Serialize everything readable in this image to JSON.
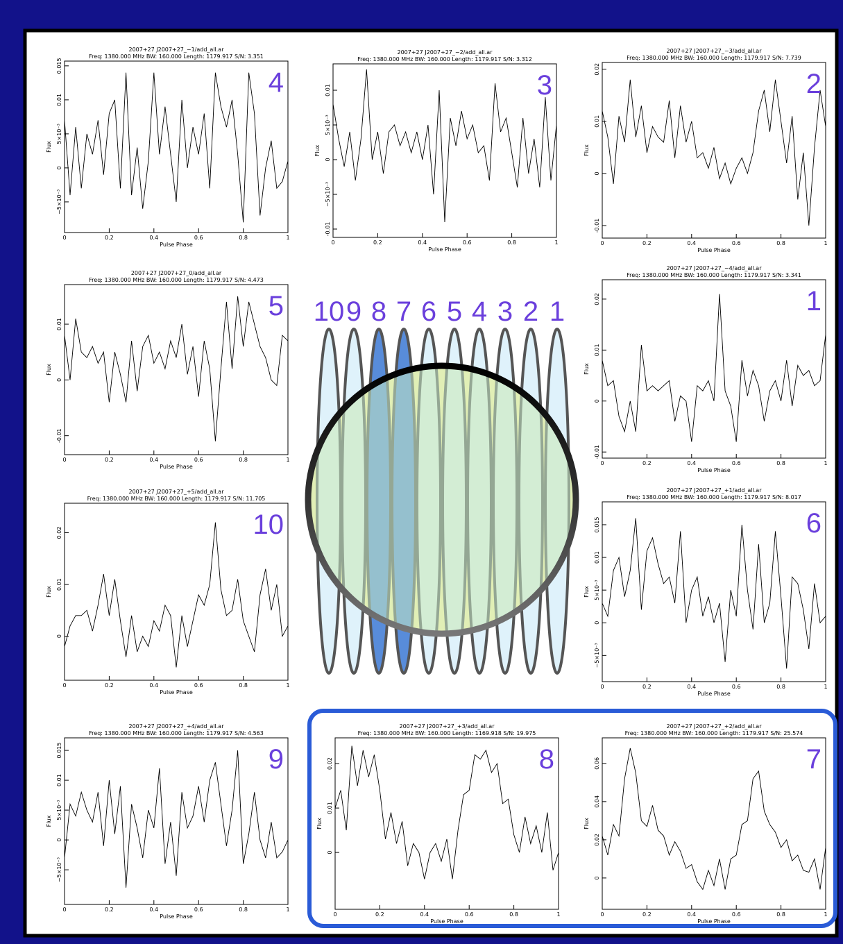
{
  "chart_data": [
    {
      "type": "line",
      "label": "4",
      "title": "2007+27 J2007+27_−1/add_all.ar",
      "subtitle": "Freq: 1380.000 MHz BW: 160.000 Length: 1179.917 S/N: 3.351",
      "x_label": "Pulse Phase",
      "y_label": "Flux",
      "x": [
        0,
        0.025,
        0.05,
        0.075,
        0.1,
        0.125,
        0.15,
        0.175,
        0.2,
        0.225,
        0.25,
        0.275,
        0.3,
        0.325,
        0.35,
        0.375,
        0.4,
        0.425,
        0.45,
        0.475,
        0.5,
        0.525,
        0.55,
        0.575,
        0.6,
        0.625,
        0.65,
        0.675,
        0.7,
        0.725,
        0.75,
        0.775,
        0.8,
        0.825,
        0.85,
        0.875,
        0.9,
        0.925,
        0.95,
        0.975,
        1
      ],
      "values": [
        0.007,
        -0.004,
        0.006,
        -0.003,
        0.005,
        0.002,
        0.007,
        -0.001,
        0.008,
        0.01,
        -0.003,
        0.014,
        -0.004,
        0.003,
        -0.006,
        0.001,
        0.014,
        0.002,
        0.009,
        0.002,
        -0.005,
        0.01,
        0.0,
        0.006,
        0.002,
        0.008,
        -0.003,
        0.014,
        0.009,
        0.006,
        0.01,
        0.002,
        -0.008,
        0.014,
        0.008,
        -0.007,
        0.0,
        0.004,
        -0.003,
        -0.002,
        0.001
      ],
      "xlim": [
        0,
        1
      ],
      "xticks": [
        0,
        0.2,
        0.4,
        0.6,
        0.8,
        1
      ],
      "ylim": [
        -0.0095,
        0.0157
      ],
      "yticks": [
        {
          "value": -0.005,
          "label": "−5×10⁻³"
        },
        0,
        {
          "value": 0.005,
          "label": "5×10⁻³"
        },
        0.01,
        0.015
      ]
    },
    {
      "type": "line",
      "label": "3",
      "title": "2007+27 J2007+27_−2/add_all.ar",
      "subtitle": "Freq: 1380.000 MHz BW: 160.000 Length: 1179.917 S/N: 3.312",
      "x_label": "Pulse Phase",
      "y_label": "Flux",
      "x": [
        0,
        0.025,
        0.05,
        0.075,
        0.1,
        0.125,
        0.15,
        0.175,
        0.2,
        0.225,
        0.25,
        0.275,
        0.3,
        0.325,
        0.35,
        0.375,
        0.4,
        0.425,
        0.45,
        0.475,
        0.5,
        0.525,
        0.55,
        0.575,
        0.6,
        0.625,
        0.65,
        0.675,
        0.7,
        0.725,
        0.75,
        0.775,
        0.8,
        0.825,
        0.85,
        0.875,
        0.9,
        0.925,
        0.95,
        0.975,
        1
      ],
      "values": [
        0.008,
        0.003,
        -0.001,
        0.004,
        -0.003,
        0.003,
        0.013,
        0.0,
        0.004,
        -0.002,
        0.004,
        0.005,
        0.002,
        0.004,
        0.001,
        0.004,
        0.0,
        0.005,
        -0.005,
        0.01,
        -0.009,
        0.006,
        0.002,
        0.007,
        0.003,
        0.005,
        0.001,
        0.002,
        -0.003,
        0.011,
        0.004,
        0.006,
        0.001,
        -0.004,
        0.006,
        -0.002,
        0.003,
        -0.004,
        0.009,
        -0.003,
        0.005
      ],
      "xlim": [
        0,
        1
      ],
      "xticks": [
        0,
        0.2,
        0.4,
        0.6,
        0.8,
        1
      ],
      "ylim": [
        -0.0112,
        0.0138
      ],
      "yticks": [
        -0.01,
        {
          "value": -0.005,
          "label": "−5×10⁻³"
        },
        0,
        {
          "value": 0.005,
          "label": "5×10⁻³"
        },
        0.01
      ]
    },
    {
      "type": "line",
      "label": "2",
      "title": "2007+27 J2007+27_−3/add_all.ar",
      "subtitle": "Freq: 1380.000 MHz BW: 160.000 Length: 1179.917 S/N: 7.739",
      "x_label": "Pulse Phase",
      "y_label": "Flux",
      "x": [
        0,
        0.025,
        0.05,
        0.075,
        0.1,
        0.125,
        0.15,
        0.175,
        0.2,
        0.225,
        0.25,
        0.275,
        0.3,
        0.325,
        0.35,
        0.375,
        0.4,
        0.425,
        0.45,
        0.475,
        0.5,
        0.525,
        0.55,
        0.575,
        0.6,
        0.625,
        0.65,
        0.675,
        0.7,
        0.725,
        0.75,
        0.775,
        0.8,
        0.825,
        0.85,
        0.875,
        0.9,
        0.925,
        0.95,
        0.975,
        1
      ],
      "values": [
        0.012,
        0.007,
        -0.002,
        0.011,
        0.006,
        0.018,
        0.007,
        0.013,
        0.004,
        0.009,
        0.007,
        0.006,
        0.014,
        0.003,
        0.013,
        0.006,
        0.01,
        0.003,
        0.004,
        0.001,
        0.005,
        -0.001,
        0.002,
        -0.002,
        0.001,
        0.003,
        0.0,
        0.004,
        0.012,
        0.016,
        0.008,
        0.018,
        0.01,
        0.002,
        0.011,
        -0.005,
        0.004,
        -0.01,
        0.005,
        0.016,
        0.009
      ],
      "xlim": [
        0,
        1
      ],
      "xticks": [
        0,
        0.2,
        0.4,
        0.6,
        0.8,
        1
      ],
      "ylim": [
        -0.0124,
        0.0213
      ],
      "yticks": [
        -0.01,
        0,
        0.01,
        0.02
      ]
    },
    {
      "type": "line",
      "label": "5",
      "title": "2007+27 J2007+27_0/add_all.ar",
      "subtitle": "Freq: 1380.000 MHz BW: 160.000 Length: 1179.917 S/N: 4.473",
      "x_label": "Pulse Phase",
      "y_label": "Flux",
      "x": [
        0,
        0.025,
        0.05,
        0.075,
        0.1,
        0.125,
        0.15,
        0.175,
        0.2,
        0.225,
        0.25,
        0.275,
        0.3,
        0.325,
        0.35,
        0.375,
        0.4,
        0.425,
        0.45,
        0.475,
        0.5,
        0.525,
        0.55,
        0.575,
        0.6,
        0.625,
        0.65,
        0.675,
        0.7,
        0.725,
        0.75,
        0.775,
        0.8,
        0.825,
        0.85,
        0.875,
        0.9,
        0.925,
        0.95,
        0.975,
        1
      ],
      "values": [
        0.008,
        0.0,
        0.011,
        0.005,
        0.004,
        0.006,
        0.003,
        0.005,
        -0.004,
        0.005,
        0.001,
        -0.004,
        0.007,
        -0.002,
        0.006,
        0.008,
        0.003,
        0.005,
        0.002,
        0.007,
        0.004,
        0.01,
        0.001,
        0.006,
        -0.003,
        0.007,
        0.002,
        -0.011,
        0.002,
        0.014,
        0.002,
        0.015,
        0.006,
        0.014,
        0.01,
        0.006,
        0.004,
        0.0,
        -0.001,
        0.008,
        0.007
      ],
      "xlim": [
        0,
        1
      ],
      "xticks": [
        0,
        0.2,
        0.4,
        0.6,
        0.8,
        1
      ],
      "ylim": [
        -0.0134,
        0.0171
      ],
      "yticks": [
        -0.01,
        0,
        0.01
      ]
    },
    {
      "type": "line",
      "label": "1",
      "title": "2007+27 J2007+27_−4/add_all.ar",
      "subtitle": "Freq: 1380.000 MHz BW: 160.000 Length: 1179.917 S/N: 3.341",
      "x_label": "Pulse Phase",
      "y_label": "Flux",
      "x": [
        0,
        0.025,
        0.05,
        0.075,
        0.1,
        0.125,
        0.15,
        0.175,
        0.2,
        0.225,
        0.25,
        0.275,
        0.3,
        0.325,
        0.35,
        0.375,
        0.4,
        0.425,
        0.45,
        0.475,
        0.5,
        0.525,
        0.55,
        0.575,
        0.6,
        0.625,
        0.65,
        0.675,
        0.7,
        0.725,
        0.75,
        0.775,
        0.8,
        0.825,
        0.85,
        0.875,
        0.9,
        0.925,
        0.95,
        0.975,
        1
      ],
      "values": [
        0.008,
        0.003,
        0.004,
        -0.003,
        -0.006,
        0.0,
        -0.006,
        0.011,
        0.002,
        0.003,
        0.002,
        0.003,
        0.004,
        -0.004,
        0.001,
        0.0,
        -0.008,
        0.003,
        0.002,
        0.004,
        0.0,
        0.021,
        0.002,
        -0.001,
        -0.008,
        0.008,
        0.001,
        0.006,
        0.003,
        -0.004,
        0.002,
        0.004,
        0.0,
        0.008,
        -0.001,
        0.007,
        0.005,
        0.006,
        0.003,
        0.004,
        0.013
      ],
      "xlim": [
        0,
        1
      ],
      "xticks": [
        0,
        0.2,
        0.4,
        0.6,
        0.8,
        1
      ],
      "ylim": [
        -0.0112,
        0.0238
      ],
      "yticks": [
        -0.01,
        0,
        0.01,
        0.02
      ]
    },
    {
      "type": "line",
      "label": "10",
      "title": "2007+27 J2007+27_+5/add_all.ar",
      "subtitle": "Freq: 1380.000 MHz BW: 160.000 Length: 1179.917 S/N: 11.705",
      "x_label": "Pulse Phase",
      "y_label": "Flux",
      "x": [
        0,
        0.025,
        0.05,
        0.075,
        0.1,
        0.125,
        0.15,
        0.175,
        0.2,
        0.225,
        0.25,
        0.275,
        0.3,
        0.325,
        0.35,
        0.375,
        0.4,
        0.425,
        0.45,
        0.475,
        0.5,
        0.525,
        0.55,
        0.575,
        0.6,
        0.625,
        0.65,
        0.675,
        0.7,
        0.725,
        0.75,
        0.775,
        0.8,
        0.825,
        0.85,
        0.875,
        0.9,
        0.925,
        0.95,
        0.975,
        1
      ],
      "values": [
        -0.002,
        0.002,
        0.004,
        0.004,
        0.005,
        0.001,
        0.006,
        0.012,
        0.004,
        0.011,
        0.003,
        -0.004,
        0.004,
        -0.003,
        0.0,
        -0.002,
        0.003,
        0.001,
        0.006,
        0.004,
        -0.006,
        0.004,
        -0.002,
        0.003,
        0.008,
        0.006,
        0.01,
        0.022,
        0.009,
        0.004,
        0.005,
        0.011,
        0.003,
        0.0,
        -0.003,
        0.008,
        0.013,
        0.005,
        0.01,
        0.0,
        0.002
      ],
      "xlim": [
        0,
        1
      ],
      "xticks": [
        0,
        0.2,
        0.4,
        0.6,
        0.8,
        1
      ],
      "ylim": [
        -0.0085,
        0.0257
      ],
      "yticks": [
        0,
        0.01,
        0.02
      ]
    },
    {
      "type": "line",
      "label": "6",
      "title": "2007+27 J2007+27_+1/add_all.ar",
      "subtitle": "Freq: 1380.000 MHz BW: 160.000 Length: 1179.917 S/N: 8.017",
      "x_label": "Pulse Phase",
      "y_label": "Flux",
      "x": [
        0,
        0.025,
        0.05,
        0.075,
        0.1,
        0.125,
        0.15,
        0.175,
        0.2,
        0.225,
        0.25,
        0.275,
        0.3,
        0.325,
        0.35,
        0.375,
        0.4,
        0.425,
        0.45,
        0.475,
        0.5,
        0.525,
        0.55,
        0.575,
        0.6,
        0.625,
        0.65,
        0.675,
        0.7,
        0.725,
        0.75,
        0.775,
        0.8,
        0.825,
        0.85,
        0.875,
        0.9,
        0.925,
        0.95,
        0.975,
        1
      ],
      "values": [
        0.003,
        0.001,
        0.008,
        0.01,
        0.004,
        0.008,
        0.016,
        0.002,
        0.011,
        0.013,
        0.009,
        0.006,
        0.007,
        0.003,
        0.014,
        0.0,
        0.005,
        0.007,
        0.001,
        0.004,
        0.0,
        0.003,
        -0.006,
        0.005,
        0.001,
        0.015,
        0.005,
        -0.001,
        0.012,
        0.0,
        0.003,
        0.014,
        0.004,
        -0.007,
        0.007,
        0.006,
        0.002,
        -0.004,
        0.006,
        0.0,
        0.001
      ],
      "xlim": [
        0,
        1
      ],
      "xticks": [
        0,
        0.2,
        0.4,
        0.6,
        0.8,
        1
      ],
      "ylim": [
        -0.009,
        0.0185
      ],
      "yticks": [
        {
          "value": -0.005,
          "label": "−5×10⁻³"
        },
        0,
        {
          "value": 0.005,
          "label": "5×10⁻³"
        },
        0.01,
        0.015
      ]
    },
    {
      "type": "line",
      "label": "9",
      "title": "2007+27 J2007+27_+4/add_all.ar",
      "subtitle": "Freq: 1380.000 MHz BW: 160.000 Length: 1179.917 S/N: 4.563",
      "x_label": "Pulse Phase",
      "y_label": "Flux",
      "x": [
        0,
        0.025,
        0.05,
        0.075,
        0.1,
        0.125,
        0.15,
        0.175,
        0.2,
        0.225,
        0.25,
        0.275,
        0.3,
        0.325,
        0.35,
        0.375,
        0.4,
        0.425,
        0.45,
        0.475,
        0.5,
        0.525,
        0.55,
        0.575,
        0.6,
        0.625,
        0.65,
        0.675,
        0.7,
        0.725,
        0.75,
        0.775,
        0.8,
        0.825,
        0.85,
        0.875,
        0.9,
        0.925,
        0.95,
        0.975,
        1
      ],
      "values": [
        -0.003,
        0.006,
        0.004,
        0.008,
        0.005,
        0.003,
        0.008,
        -0.001,
        0.01,
        0.001,
        0.009,
        -0.008,
        0.006,
        0.002,
        -0.003,
        0.005,
        0.002,
        0.012,
        -0.004,
        0.003,
        -0.006,
        0.008,
        0.002,
        0.004,
        0.009,
        0.003,
        0.01,
        0.013,
        0.006,
        -0.001,
        0.005,
        0.015,
        -0.004,
        0.001,
        0.008,
        0.0,
        -0.003,
        0.003,
        -0.003,
        -0.002,
        0.0
      ],
      "xlim": [
        0,
        1
      ],
      "xticks": [
        0,
        0.2,
        0.4,
        0.6,
        0.8,
        1
      ],
      "ylim": [
        -0.0108,
        0.0171
      ],
      "yticks": [
        {
          "value": -0.005,
          "label": "−5×10⁻³"
        },
        0,
        {
          "value": 0.005,
          "label": "5×10⁻³"
        },
        0.01,
        0.015
      ]
    },
    {
      "type": "line",
      "label": "8",
      "title": "2007+27 J2007+27_+3/add_all.ar",
      "subtitle": "Freq: 1380.000 MHz BW: 160.000 Length: 1169.918 S/N: 19.975",
      "x_label": "Pulse Phase",
      "y_label": "Flux",
      "x": [
        0,
        0.025,
        0.05,
        0.075,
        0.1,
        0.125,
        0.15,
        0.175,
        0.2,
        0.225,
        0.25,
        0.275,
        0.3,
        0.325,
        0.35,
        0.375,
        0.4,
        0.425,
        0.45,
        0.475,
        0.5,
        0.525,
        0.55,
        0.575,
        0.6,
        0.625,
        0.65,
        0.675,
        0.7,
        0.725,
        0.75,
        0.775,
        0.8,
        0.825,
        0.85,
        0.875,
        0.9,
        0.925,
        0.95,
        0.975,
        1
      ],
      "values": [
        0.01,
        0.014,
        0.005,
        0.024,
        0.015,
        0.023,
        0.017,
        0.022,
        0.014,
        0.003,
        0.009,
        0.002,
        0.007,
        -0.003,
        0.002,
        0.0,
        -0.006,
        0.0,
        0.002,
        -0.002,
        0.003,
        -0.006,
        0.005,
        0.013,
        0.014,
        0.022,
        0.021,
        0.023,
        0.018,
        0.02,
        0.011,
        0.012,
        0.004,
        0.0,
        0.008,
        0.002,
        0.006,
        0.0,
        0.009,
        -0.004,
        0.0
      ],
      "xlim": [
        0,
        1
      ],
      "xticks": [
        0,
        0.2,
        0.4,
        0.6,
        0.8,
        1
      ],
      "ylim": [
        -0.0128,
        0.0258
      ],
      "yticks": [
        0,
        0.01,
        0.02
      ]
    },
    {
      "type": "line",
      "label": "7",
      "title": "2007+27 J2007+27_+2/add_all.ar",
      "subtitle": "Freq: 1380.000 MHz BW: 160.000 Length: 1179.917 S/N: 25.574",
      "x_label": "Pulse Phase",
      "y_label": "Flux",
      "x": [
        0,
        0.025,
        0.05,
        0.075,
        0.1,
        0.125,
        0.15,
        0.175,
        0.2,
        0.225,
        0.25,
        0.275,
        0.3,
        0.325,
        0.35,
        0.375,
        0.4,
        0.425,
        0.45,
        0.475,
        0.5,
        0.525,
        0.55,
        0.575,
        0.6,
        0.625,
        0.65,
        0.675,
        0.7,
        0.725,
        0.75,
        0.775,
        0.8,
        0.825,
        0.85,
        0.875,
        0.9,
        0.925,
        0.95,
        0.975,
        1
      ],
      "values": [
        0.022,
        0.012,
        0.028,
        0.022,
        0.052,
        0.068,
        0.055,
        0.03,
        0.027,
        0.038,
        0.025,
        0.022,
        0.012,
        0.019,
        0.014,
        0.005,
        0.007,
        -0.002,
        -0.006,
        0.004,
        -0.004,
        0.01,
        -0.006,
        0.01,
        0.012,
        0.028,
        0.03,
        0.052,
        0.056,
        0.035,
        0.028,
        0.024,
        0.016,
        0.02,
        0.009,
        0.012,
        0.004,
        0.003,
        0.01,
        -0.006,
        0.016
      ],
      "xlim": [
        0,
        1
      ],
      "xticks": [
        0,
        0.2,
        0.4,
        0.6,
        0.8,
        1
      ],
      "ylim": [
        -0.0164,
        0.0734
      ],
      "yticks": [
        0,
        0.02,
        0.04,
        0.06
      ]
    }
  ],
  "diagram": {
    "beam_labels": [
      "10",
      "9",
      "8",
      "7",
      "6",
      "5",
      "4",
      "3",
      "2",
      "1"
    ]
  }
}
